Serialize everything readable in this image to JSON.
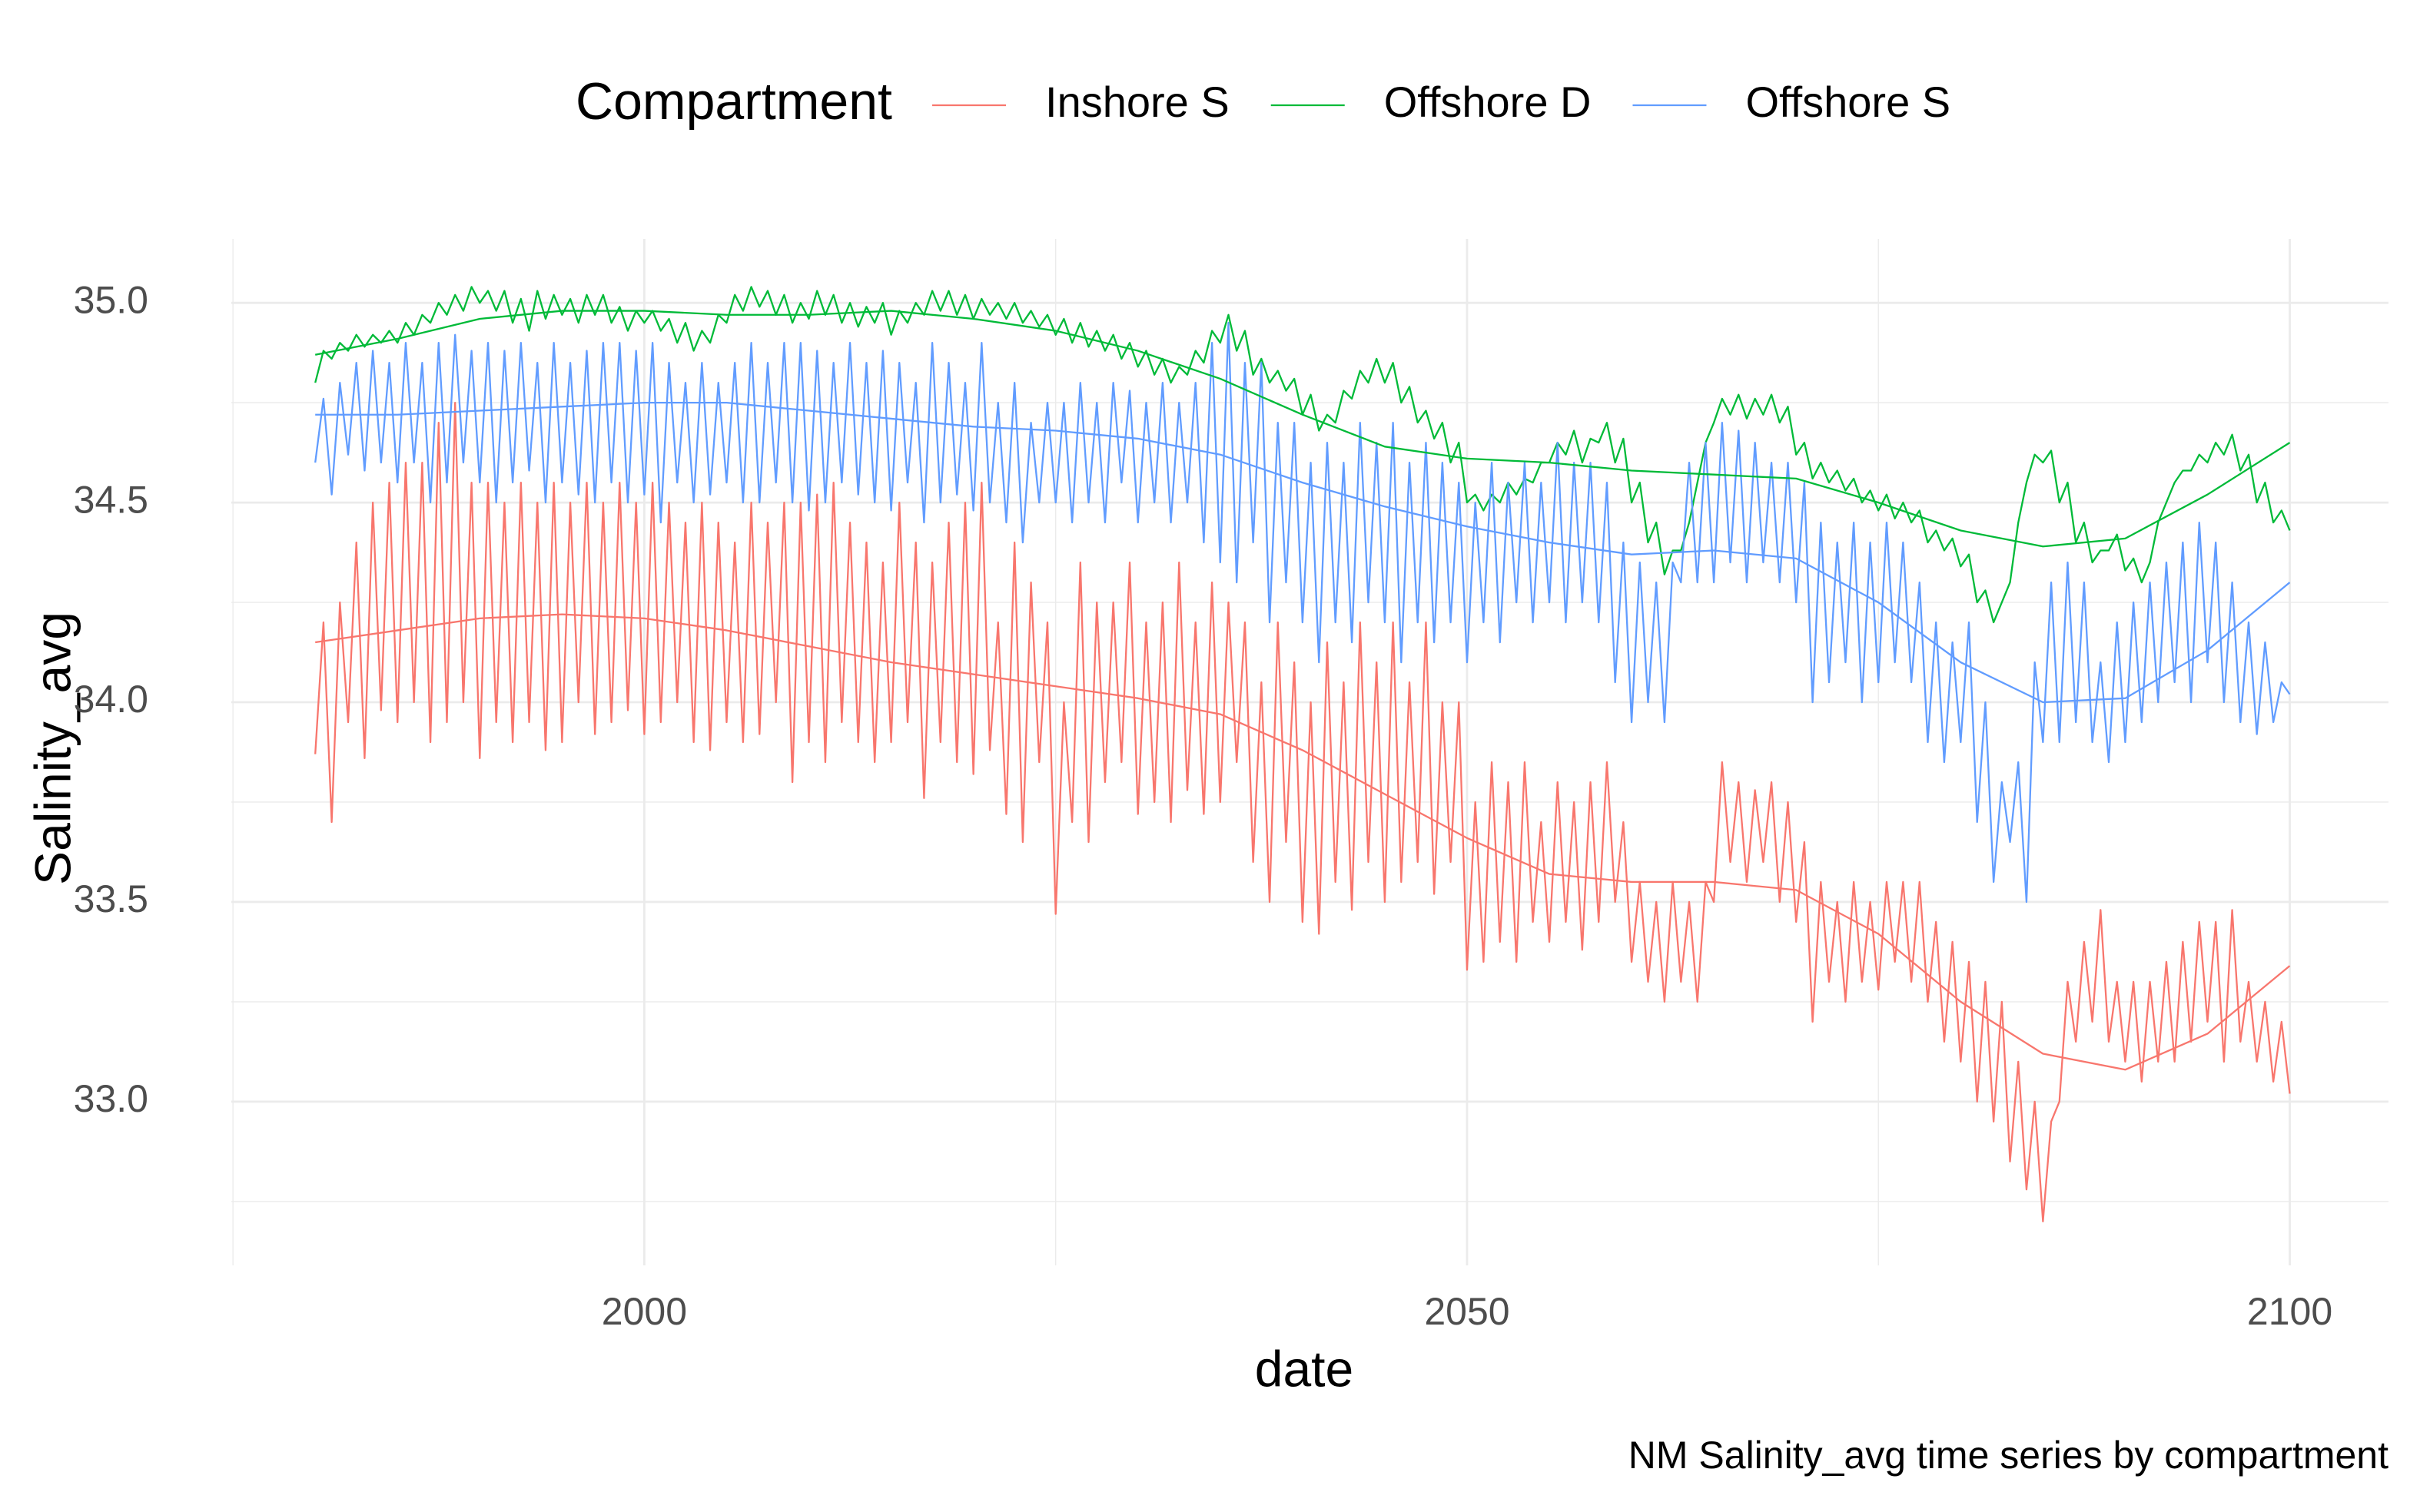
{
  "chart_data": {
    "type": "line",
    "caption": "NM Salinity_avg time series by compartment",
    "x_label": "date",
    "y_label": "Salinity_avg",
    "legend_title": "Compartment",
    "legend_position": "top",
    "grid": true,
    "xlim": [
      1974.9,
      2106
    ],
    "ylim": [
      32.59,
      35.16
    ],
    "xticks": [
      2000,
      2050,
      2100
    ],
    "yticks": [
      {
        "value": 33,
        "label": "33.0"
      },
      33.5,
      {
        "value": 34,
        "label": "34.0"
      },
      34.5,
      {
        "value": 35,
        "label": "35.0"
      }
    ],
    "x_minor_ticks": [
      1975,
      2025,
      2075
    ],
    "y_minor_ticks": [
      32.75,
      33.25,
      33.75,
      34.25,
      34.75
    ],
    "x": [
      1980,
      1980.5,
      1981,
      1981.5,
      1982,
      1982.5,
      1983,
      1983.5,
      1984,
      1984.5,
      1985,
      1985.5,
      1986,
      1986.5,
      1987,
      1987.5,
      1988,
      1988.5,
      1989,
      1989.5,
      1990,
      1990.5,
      1991,
      1991.5,
      1992,
      1992.5,
      1993,
      1993.5,
      1994,
      1994.5,
      1995,
      1995.5,
      1996,
      1996.5,
      1997,
      1997.5,
      1998,
      1998.5,
      1999,
      1999.5,
      2000,
      2000.5,
      2001,
      2001.5,
      2002,
      2002.5,
      2003,
      2003.5,
      2004,
      2004.5,
      2005,
      2005.5,
      2006,
      2006.5,
      2007,
      2007.5,
      2008,
      2008.5,
      2009,
      2009.5,
      2010,
      2010.5,
      2011,
      2011.5,
      2012,
      2012.5,
      2013,
      2013.5,
      2014,
      2014.5,
      2015,
      2015.5,
      2016,
      2016.5,
      2017,
      2017.5,
      2018,
      2018.5,
      2019,
      2019.5,
      2020,
      2020.5,
      2021,
      2021.5,
      2022,
      2022.5,
      2023,
      2023.5,
      2024,
      2024.5,
      2025,
      2025.5,
      2026,
      2026.5,
      2027,
      2027.5,
      2028,
      2028.5,
      2029,
      2029.5,
      2030,
      2030.5,
      2031,
      2031.5,
      2032,
      2032.5,
      2033,
      2033.5,
      2034,
      2034.5,
      2035,
      2035.5,
      2036,
      2036.5,
      2037,
      2037.5,
      2038,
      2038.5,
      2039,
      2039.5,
      2040,
      2040.5,
      2041,
      2041.5,
      2042,
      2042.5,
      2043,
      2043.5,
      2044,
      2044.5,
      2045,
      2045.5,
      2046,
      2046.5,
      2047,
      2047.5,
      2048,
      2048.5,
      2049,
      2049.5,
      2050,
      2050.5,
      2051,
      2051.5,
      2052,
      2052.5,
      2053,
      2053.5,
      2054,
      2054.5,
      2055,
      2055.5,
      2056,
      2056.5,
      2057,
      2057.5,
      2058,
      2058.5,
      2059,
      2059.5,
      2060,
      2060.5,
      2061,
      2061.5,
      2062,
      2062.5,
      2063,
      2063.5,
      2064,
      2064.5,
      2065,
      2065.5,
      2066,
      2066.5,
      2067,
      2067.5,
      2068,
      2068.5,
      2069,
      2069.5,
      2070,
      2070.5,
      2071,
      2071.5,
      2072,
      2072.5,
      2073,
      2073.5,
      2074,
      2074.5,
      2075,
      2075.5,
      2076,
      2076.5,
      2077,
      2077.5,
      2078,
      2078.5,
      2079,
      2079.5,
      2080,
      2080.5,
      2081,
      2081.5,
      2082,
      2082.5,
      2083,
      2083.5,
      2084,
      2084.5,
      2085,
      2085.5,
      2086,
      2086.5,
      2087,
      2087.5,
      2088,
      2088.5,
      2089,
      2089.5,
      2090,
      2090.5,
      2091,
      2091.5,
      2092,
      2092.5,
      2093,
      2093.5,
      2094,
      2094.5,
      2095,
      2095.5,
      2096,
      2096.5,
      2097,
      2097.5,
      2098,
      2098.5,
      2099,
      2099.5,
      2100
    ],
    "trend_x": [
      1980,
      1985,
      1990,
      1995,
      2000,
      2005,
      2010,
      2015,
      2020,
      2025,
      2030,
      2035,
      2040,
      2045,
      2050,
      2055,
      2060,
      2065,
      2070,
      2075,
      2080,
      2085,
      2090,
      2095,
      2100
    ],
    "series": [
      {
        "name": "Inshore S",
        "color": "#F8766D",
        "values": [
          33.87,
          34.2,
          33.7,
          34.25,
          33.95,
          34.4,
          33.86,
          34.5,
          33.98,
          34.55,
          33.95,
          34.6,
          34.0,
          34.6,
          33.9,
          34.7,
          33.95,
          34.75,
          34.0,
          34.55,
          33.86,
          34.55,
          33.95,
          34.5,
          33.9,
          34.55,
          33.95,
          34.5,
          33.88,
          34.55,
          33.9,
          34.5,
          34.0,
          34.55,
          33.92,
          34.5,
          33.95,
          34.55,
          33.98,
          34.5,
          33.92,
          34.55,
          33.95,
          34.5,
          34.0,
          34.45,
          33.9,
          34.5,
          33.88,
          34.45,
          33.95,
          34.4,
          33.9,
          34.5,
          33.92,
          34.45,
          34.0,
          34.5,
          33.8,
          34.5,
          33.9,
          34.52,
          33.85,
          34.55,
          33.95,
          34.45,
          33.9,
          34.4,
          33.85,
          34.35,
          33.9,
          34.5,
          33.95,
          34.4,
          33.76,
          34.35,
          33.9,
          34.45,
          33.85,
          34.5,
          33.82,
          34.55,
          33.88,
          34.2,
          33.72,
          34.4,
          33.65,
          34.3,
          33.85,
          34.2,
          33.47,
          34.0,
          33.7,
          34.35,
          33.65,
          34.25,
          33.8,
          34.25,
          33.85,
          34.35,
          33.72,
          34.2,
          33.75,
          34.25,
          33.7,
          34.35,
          33.78,
          34.2,
          33.72,
          34.3,
          33.75,
          34.25,
          33.85,
          34.2,
          33.6,
          34.05,
          33.5,
          34.2,
          33.65,
          34.1,
          33.45,
          34.0,
          33.42,
          34.15,
          33.55,
          34.05,
          33.48,
          34.2,
          33.6,
          34.1,
          33.5,
          34.2,
          33.55,
          34.05,
          33.6,
          34.2,
          33.52,
          34.0,
          33.6,
          34.0,
          33.33,
          33.75,
          33.35,
          33.85,
          33.4,
          33.8,
          33.35,
          33.85,
          33.45,
          33.7,
          33.4,
          33.8,
          33.45,
          33.75,
          33.38,
          33.8,
          33.45,
          33.85,
          33.5,
          33.7,
          33.35,
          33.55,
          33.3,
          33.5,
          33.25,
          33.55,
          33.3,
          33.5,
          33.25,
          33.55,
          33.5,
          33.85,
          33.6,
          33.8,
          33.55,
          33.78,
          33.6,
          33.8,
          33.5,
          33.75,
          33.45,
          33.65,
          33.2,
          33.55,
          33.3,
          33.5,
          33.25,
          33.55,
          33.3,
          33.5,
          33.28,
          33.55,
          33.35,
          33.55,
          33.3,
          33.55,
          33.25,
          33.45,
          33.15,
          33.4,
          33.1,
          33.35,
          33.0,
          33.3,
          32.95,
          33.25,
          32.85,
          33.1,
          32.78,
          33.0,
          32.7,
          32.95,
          33.0,
          33.3,
          33.15,
          33.4,
          33.2,
          33.48,
          33.15,
          33.3,
          33.1,
          33.3,
          33.05,
          33.3,
          33.1,
          33.35,
          33.1,
          33.4,
          33.15,
          33.45,
          33.2,
          33.45,
          33.1,
          33.48,
          33.15,
          33.3,
          33.1,
          33.25,
          33.05,
          33.2,
          33.02
        ],
        "trend": [
          34.15,
          34.18,
          34.21,
          34.22,
          34.21,
          34.18,
          34.14,
          34.1,
          34.07,
          34.04,
          34.01,
          33.97,
          33.88,
          33.77,
          33.66,
          33.57,
          33.55,
          33.55,
          33.53,
          33.42,
          33.25,
          33.12,
          33.08,
          33.17,
          33.34
        ]
      },
      {
        "name": "Offshore D",
        "color": "#00BA38",
        "values": [
          34.8,
          34.88,
          34.86,
          34.9,
          34.88,
          34.92,
          34.89,
          34.92,
          34.9,
          34.93,
          34.9,
          34.95,
          34.92,
          34.97,
          34.95,
          35.0,
          34.97,
          35.02,
          34.98,
          35.04,
          35.0,
          35.03,
          34.98,
          35.03,
          34.95,
          35.01,
          34.93,
          35.03,
          34.96,
          35.02,
          34.97,
          35.01,
          34.95,
          35.02,
          34.97,
          35.02,
          34.95,
          34.99,
          34.93,
          34.98,
          34.95,
          34.98,
          34.93,
          34.96,
          34.9,
          34.95,
          34.88,
          34.93,
          34.9,
          34.97,
          34.95,
          35.02,
          34.98,
          35.04,
          34.99,
          35.03,
          34.97,
          35.02,
          34.95,
          35.0,
          34.96,
          35.03,
          34.97,
          35.02,
          34.95,
          35.0,
          34.94,
          34.99,
          34.95,
          35.0,
          34.92,
          34.98,
          34.95,
          35.0,
          34.97,
          35.03,
          34.98,
          35.03,
          34.97,
          35.02,
          34.96,
          35.01,
          34.97,
          35.0,
          34.96,
          35.0,
          34.95,
          34.98,
          34.94,
          34.97,
          34.92,
          34.96,
          34.9,
          34.95,
          34.89,
          34.93,
          34.88,
          34.92,
          34.86,
          34.9,
          34.84,
          34.88,
          34.82,
          34.86,
          34.8,
          34.84,
          34.82,
          34.88,
          34.85,
          34.93,
          34.9,
          34.97,
          34.88,
          34.93,
          34.82,
          34.86,
          34.8,
          34.83,
          34.78,
          34.81,
          34.72,
          34.77,
          34.68,
          34.72,
          34.7,
          34.78,
          34.76,
          34.83,
          34.8,
          34.86,
          34.8,
          34.85,
          34.75,
          34.79,
          34.7,
          34.73,
          34.66,
          34.7,
          34.6,
          34.65,
          34.5,
          34.52,
          34.48,
          34.52,
          34.5,
          34.55,
          34.52,
          34.56,
          34.55,
          34.6,
          34.6,
          34.65,
          34.62,
          34.68,
          34.6,
          34.66,
          34.65,
          34.7,
          34.6,
          34.66,
          34.5,
          34.55,
          34.4,
          34.45,
          34.32,
          34.38,
          34.38,
          34.45,
          34.55,
          34.65,
          34.7,
          34.76,
          34.72,
          34.77,
          34.71,
          34.76,
          34.72,
          34.77,
          34.7,
          34.74,
          34.62,
          34.65,
          34.56,
          34.6,
          34.55,
          34.58,
          34.53,
          34.56,
          34.5,
          34.53,
          34.48,
          34.52,
          34.46,
          34.5,
          34.45,
          34.48,
          34.4,
          34.43,
          34.38,
          34.41,
          34.34,
          34.37,
          34.25,
          34.28,
          34.2,
          34.25,
          34.3,
          34.45,
          34.55,
          34.62,
          34.6,
          34.63,
          34.5,
          34.55,
          34.4,
          34.45,
          34.35,
          34.38,
          34.38,
          34.42,
          34.33,
          34.36,
          34.3,
          34.35,
          34.45,
          34.5,
          34.55,
          34.58,
          34.58,
          34.62,
          34.6,
          34.65,
          34.62,
          34.67,
          34.58,
          34.62,
          34.5,
          34.55,
          34.45,
          34.48,
          34.43
        ],
        "trend": [
          34.87,
          34.91,
          34.96,
          34.98,
          34.98,
          34.97,
          34.97,
          34.98,
          34.96,
          34.93,
          34.88,
          34.81,
          34.72,
          34.64,
          34.61,
          34.6,
          34.58,
          34.57,
          34.56,
          34.5,
          34.43,
          34.39,
          34.41,
          34.52,
          34.65
        ]
      },
      {
        "name": "Offshore S",
        "color": "#619CFF",
        "values": [
          34.6,
          34.76,
          34.52,
          34.8,
          34.62,
          34.85,
          34.58,
          34.88,
          34.6,
          34.85,
          34.55,
          34.9,
          34.6,
          34.85,
          34.5,
          34.9,
          34.55,
          34.92,
          34.6,
          34.88,
          34.55,
          34.9,
          34.5,
          34.88,
          34.55,
          34.9,
          34.58,
          34.85,
          34.5,
          34.9,
          34.55,
          34.85,
          34.52,
          34.88,
          34.5,
          34.9,
          34.55,
          34.9,
          34.5,
          34.88,
          34.52,
          34.9,
          34.45,
          34.85,
          34.55,
          34.8,
          34.5,
          34.85,
          34.52,
          34.8,
          34.55,
          34.85,
          34.5,
          34.9,
          34.5,
          34.85,
          34.55,
          34.9,
          34.5,
          34.9,
          34.48,
          34.88,
          34.5,
          34.85,
          34.55,
          34.9,
          34.52,
          34.85,
          34.5,
          34.88,
          34.48,
          34.85,
          34.55,
          34.8,
          34.45,
          34.9,
          34.5,
          34.85,
          34.52,
          34.8,
          34.48,
          34.9,
          34.5,
          34.75,
          34.45,
          34.8,
          34.4,
          34.7,
          34.5,
          34.75,
          34.5,
          34.75,
          34.45,
          34.8,
          34.5,
          34.75,
          34.45,
          34.8,
          34.55,
          34.78,
          34.45,
          34.75,
          34.5,
          34.8,
          34.45,
          34.75,
          34.5,
          34.8,
          34.4,
          34.9,
          34.35,
          34.95,
          34.3,
          34.85,
          34.4,
          34.85,
          34.2,
          34.7,
          34.3,
          34.7,
          34.2,
          34.6,
          34.1,
          34.65,
          34.2,
          34.6,
          34.15,
          34.7,
          34.25,
          34.65,
          34.2,
          34.7,
          34.1,
          34.6,
          34.2,
          34.65,
          34.15,
          34.6,
          34.2,
          34.55,
          34.1,
          34.5,
          34.2,
          34.6,
          34.15,
          34.55,
          34.25,
          34.6,
          34.2,
          34.55,
          34.25,
          34.65,
          34.2,
          34.6,
          34.25,
          34.6,
          34.2,
          34.55,
          34.05,
          34.4,
          33.95,
          34.35,
          34.0,
          34.3,
          33.95,
          34.35,
          34.3,
          34.6,
          34.3,
          34.65,
          34.3,
          34.7,
          34.35,
          34.68,
          34.3,
          34.65,
          34.35,
          34.6,
          34.3,
          34.6,
          34.25,
          34.55,
          34.0,
          34.45,
          34.05,
          34.4,
          34.1,
          34.45,
          34.0,
          34.4,
          34.05,
          34.45,
          34.1,
          34.4,
          34.05,
          34.3,
          33.9,
          34.2,
          33.85,
          34.15,
          33.9,
          34.2,
          33.7,
          34.0,
          33.55,
          33.8,
          33.65,
          33.85,
          33.5,
          34.1,
          33.9,
          34.3,
          33.9,
          34.35,
          33.95,
          34.3,
          33.9,
          34.1,
          33.85,
          34.2,
          33.9,
          34.25,
          33.95,
          34.3,
          34.0,
          34.35,
          34.05,
          34.4,
          34.0,
          34.45,
          34.1,
          34.4,
          34.0,
          34.3,
          33.95,
          34.2,
          33.92,
          34.15,
          33.95,
          34.05,
          34.02
        ],
        "trend": [
          34.72,
          34.72,
          34.73,
          34.74,
          34.75,
          34.75,
          34.73,
          34.71,
          34.69,
          34.68,
          34.66,
          34.62,
          34.55,
          34.49,
          34.44,
          34.4,
          34.37,
          34.38,
          34.36,
          34.25,
          34.1,
          34.0,
          34.01,
          34.13,
          34.3
        ]
      }
    ]
  }
}
